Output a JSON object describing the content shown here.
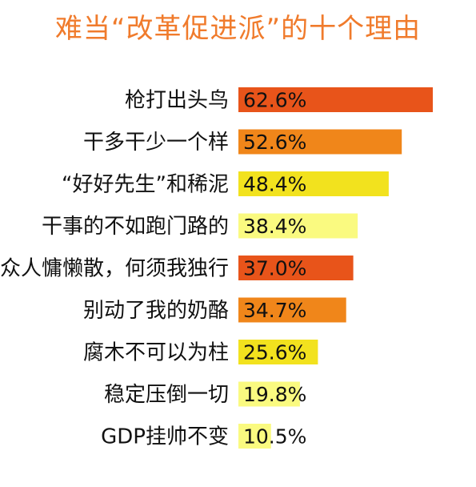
{
  "chart_data": {
    "type": "bar",
    "orientation": "horizontal",
    "title": "难当“改革促进派”的十个理由",
    "categories": [
      "枪打出头鸟",
      "干多干少一个样",
      "“好好先生”和稀泥",
      "干事的不如跑门路的",
      "众人慵懒散，何须我独行",
      "别动了我的奶酪",
      "腐木不可以为柱",
      "稳定压倒一切",
      "GDP挂帅不变"
    ],
    "values": [
      62.6,
      52.6,
      48.4,
      38.4,
      37.0,
      34.7,
      25.6,
      19.8,
      10.5
    ],
    "value_labels": [
      "62.6%",
      "52.6%",
      "48.4%",
      "38.4%",
      "37.0%",
      "34.7%",
      "25.6%",
      "19.8%",
      "10.5%"
    ],
    "bar_colors": [
      "#e8541a",
      "#f0861a",
      "#f2e21e",
      "#fafa80",
      "#e8541a",
      "#f0861a",
      "#f2e21e",
      "#fafa80",
      "#fafa80"
    ],
    "xlim": [
      0,
      62.6
    ],
    "grid": false,
    "legend": "none",
    "title_color": "#f07b2c"
  }
}
